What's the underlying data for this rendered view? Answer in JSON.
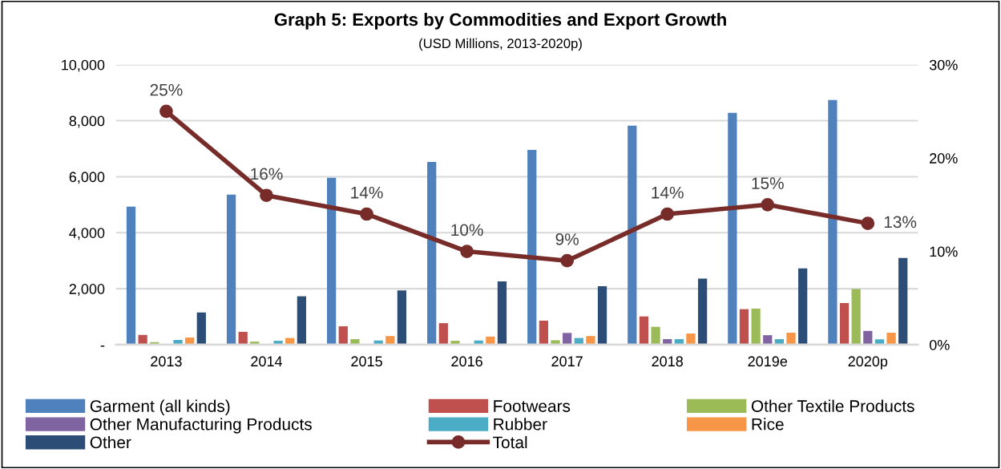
{
  "chart_data": {
    "type": "bar",
    "title": "Graph 5: Exports by Commodities and Export Growth",
    "subtitle": "(USD Millions, 2013-2020p)",
    "categories": [
      "2013",
      "2014",
      "2015",
      "2016",
      "2017",
      "2018",
      "2019e",
      "2020p"
    ],
    "series": [
      {
        "name": "Garment (all kinds)",
        "color": "#4f81bd",
        "values": [
          4930,
          5360,
          5960,
          6530,
          6960,
          7820,
          8280,
          8740
        ]
      },
      {
        "name": "Footwears",
        "color": "#c0504d",
        "values": [
          350,
          460,
          660,
          770,
          860,
          1010,
          1270,
          1490
        ]
      },
      {
        "name": "Other Textile Products",
        "color": "#9bbb59",
        "values": [
          90,
          110,
          200,
          140,
          160,
          640,
          1290,
          1990
        ]
      },
      {
        "name": "Other Manufacturing Products",
        "color": "#8064a2",
        "values": [
          null,
          null,
          null,
          null,
          420,
          200,
          340,
          490
        ]
      },
      {
        "name": "Rubber",
        "color": "#4bacc6",
        "values": [
          170,
          140,
          150,
          150,
          240,
          200,
          200,
          190
        ]
      },
      {
        "name": "Rice",
        "color": "#f79646",
        "values": [
          260,
          240,
          310,
          290,
          310,
          400,
          430,
          430
        ]
      },
      {
        "name": "Other",
        "color": "#2c4d75",
        "values": [
          1150,
          1730,
          1940,
          2260,
          2090,
          2360,
          2730,
          3100
        ]
      },
      {
        "name": "Total",
        "type": "line",
        "axis": "y2",
        "color": "#772c2a",
        "marker": "circle",
        "line_style": "solid",
        "values": [
          25,
          16,
          14,
          10,
          9,
          14,
          15,
          13
        ],
        "value_labels": [
          "25%",
          "16%",
          "14%",
          "10%",
          "9%",
          "14%",
          "15%",
          "13%"
        ]
      }
    ],
    "ylim": [
      0,
      10000
    ],
    "yticks": [
      {
        "value": 0,
        "label": "-"
      },
      {
        "value": 2000,
        "label": "2,000"
      },
      {
        "value": 4000,
        "label": "4,000"
      },
      {
        "value": 6000,
        "label": "6,000"
      },
      {
        "value": 8000,
        "label": "8,000"
      },
      {
        "value": 10000,
        "label": "10,000"
      }
    ],
    "y2lim": [
      0,
      30
    ],
    "y2ticks": [
      {
        "value": 0,
        "label": "0%"
      },
      {
        "value": 10,
        "label": "10%"
      },
      {
        "value": 20,
        "label": "20%"
      },
      {
        "value": 30,
        "label": "30%"
      }
    ],
    "grid": "y",
    "legend": "bottom"
  }
}
